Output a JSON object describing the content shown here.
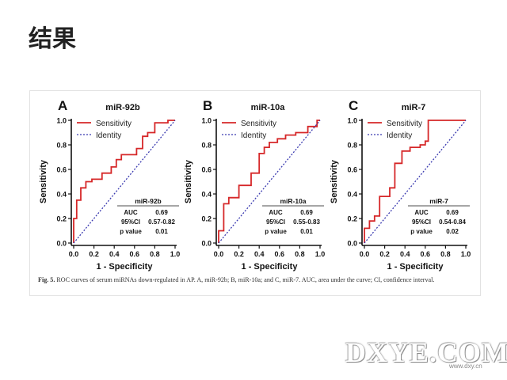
{
  "slide": {
    "title": "结果"
  },
  "figure": {
    "caption_lead": "Fig. 5.",
    "caption_text": "ROC curves of serum miRNAs down-regulated in AP. A, miR-92b; B, miR-10a; and C, miR-7. AUC, area under the curve; CI, confidence interval."
  },
  "watermark": {
    "text": "DXYE.COM",
    "url": "www.dxy.cn"
  },
  "chart_data": [
    {
      "type": "line",
      "panel_letter": "A",
      "title": "miR-92b",
      "xlabel": "1 - Specificity",
      "ylabel": "Sensitivity",
      "xlim": [
        0,
        1
      ],
      "ylim": [
        0,
        1
      ],
      "xticks": [
        "0.0",
        "0.2",
        "0.4",
        "0.6",
        "0.8",
        "1.0"
      ],
      "yticks": [
        "0.0",
        "0.2",
        "0.4",
        "0.6",
        "0.8",
        "1.0"
      ],
      "legend_position": "top-left",
      "series": [
        {
          "name": "Sensitivity",
          "color": "#d62728",
          "style": "step",
          "x": [
            0.0,
            0.0,
            0.03,
            0.03,
            0.07,
            0.07,
            0.12,
            0.12,
            0.18,
            0.18,
            0.28,
            0.28,
            0.37,
            0.37,
            0.42,
            0.42,
            0.47,
            0.47,
            0.62,
            0.62,
            0.68,
            0.68,
            0.73,
            0.73,
            0.8,
            0.8,
            0.93,
            0.93,
            1.0
          ],
          "y": [
            0.0,
            0.2,
            0.2,
            0.35,
            0.35,
            0.45,
            0.45,
            0.5,
            0.5,
            0.52,
            0.52,
            0.57,
            0.57,
            0.62,
            0.62,
            0.68,
            0.68,
            0.72,
            0.72,
            0.77,
            0.77,
            0.87,
            0.87,
            0.9,
            0.9,
            0.98,
            0.98,
            1.0,
            1.0
          ]
        },
        {
          "name": "Identity",
          "color": "#3a3ab0",
          "style": "dotted",
          "x": [
            0,
            1
          ],
          "y": [
            0,
            1
          ]
        }
      ],
      "stats": {
        "header": "miR-92b",
        "rows": [
          [
            "AUC",
            "0.69"
          ],
          [
            "95%CI",
            "0.57-0.82"
          ],
          [
            "p value",
            "0.01"
          ]
        ]
      }
    },
    {
      "type": "line",
      "panel_letter": "B",
      "title": "miR-10a",
      "xlabel": "1 - Specificity",
      "ylabel": "Sensitivity",
      "xlim": [
        0,
        1
      ],
      "ylim": [
        0,
        1
      ],
      "xticks": [
        "0.0",
        "0.2",
        "0.4",
        "0.6",
        "0.8",
        "1.0"
      ],
      "yticks": [
        "0.0",
        "0.2",
        "0.4",
        "0.6",
        "0.8",
        "1.0"
      ],
      "legend_position": "top-left",
      "series": [
        {
          "name": "Sensitivity",
          "color": "#d62728",
          "style": "step",
          "x": [
            0.0,
            0.0,
            0.05,
            0.05,
            0.1,
            0.1,
            0.2,
            0.2,
            0.32,
            0.32,
            0.4,
            0.4,
            0.45,
            0.45,
            0.5,
            0.5,
            0.58,
            0.58,
            0.66,
            0.66,
            0.76,
            0.76,
            0.88,
            0.88,
            0.97,
            0.97,
            1.0
          ],
          "y": [
            0.0,
            0.1,
            0.1,
            0.32,
            0.32,
            0.37,
            0.37,
            0.47,
            0.47,
            0.57,
            0.57,
            0.73,
            0.73,
            0.78,
            0.78,
            0.82,
            0.82,
            0.85,
            0.85,
            0.88,
            0.88,
            0.9,
            0.9,
            0.95,
            0.95,
            1.0,
            1.0
          ]
        },
        {
          "name": "Identity",
          "color": "#3a3ab0",
          "style": "dotted",
          "x": [
            0,
            1
          ],
          "y": [
            0,
            1
          ]
        }
      ],
      "stats": {
        "header": "miR-10a",
        "rows": [
          [
            "AUC",
            "0.69"
          ],
          [
            "95%CI",
            "0.55-0.83"
          ],
          [
            "p value",
            "0.01"
          ]
        ]
      }
    },
    {
      "type": "line",
      "panel_letter": "C",
      "title": "miR-7",
      "xlabel": "1 - Specificity",
      "ylabel": "Sensitivity",
      "xlim": [
        0,
        1
      ],
      "ylim": [
        0,
        1
      ],
      "xticks": [
        "0.0",
        "0.2",
        "0.4",
        "0.6",
        "0.8",
        "1.0"
      ],
      "yticks": [
        "0.0",
        "0.2",
        "0.4",
        "0.6",
        "0.8",
        "1.0"
      ],
      "legend_position": "top-left",
      "series": [
        {
          "name": "Sensitivity",
          "color": "#d62728",
          "style": "step",
          "x": [
            0.0,
            0.0,
            0.05,
            0.05,
            0.1,
            0.1,
            0.15,
            0.15,
            0.25,
            0.25,
            0.3,
            0.3,
            0.37,
            0.37,
            0.45,
            0.45,
            0.55,
            0.55,
            0.6,
            0.6,
            0.63,
            0.63,
            0.75,
            0.75,
            1.0
          ],
          "y": [
            0.0,
            0.12,
            0.12,
            0.18,
            0.18,
            0.22,
            0.22,
            0.38,
            0.38,
            0.45,
            0.45,
            0.65,
            0.65,
            0.75,
            0.75,
            0.78,
            0.78,
            0.8,
            0.8,
            0.83,
            0.83,
            1.0,
            1.0,
            1.0,
            1.0
          ]
        },
        {
          "name": "Identity",
          "color": "#3a3ab0",
          "style": "dotted",
          "x": [
            0,
            1
          ],
          "y": [
            0,
            1
          ]
        }
      ],
      "stats": {
        "header": "miR-7",
        "rows": [
          [
            "AUC",
            "0.69"
          ],
          [
            "95%CI",
            "0.54-0.84"
          ],
          [
            "p value",
            "0.02"
          ]
        ]
      }
    }
  ]
}
